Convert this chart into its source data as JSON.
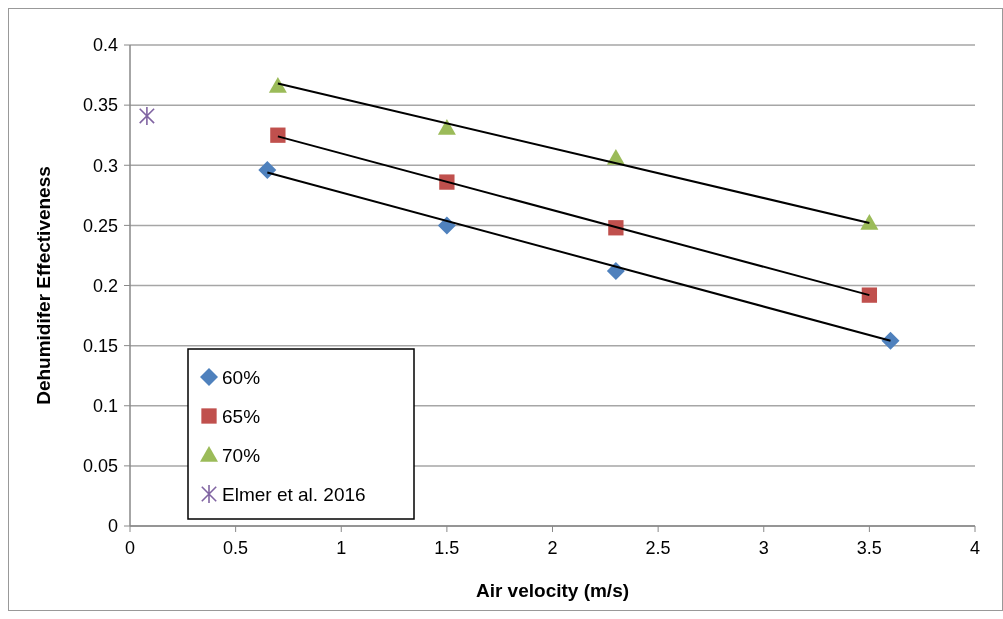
{
  "chart_data": {
    "type": "scatter",
    "xlabel": "Air velocity (m/s)",
    "ylabel": "Dehumidifer Effectiveness",
    "xlim": [
      0,
      4
    ],
    "xticks": [
      0,
      0.5,
      1,
      1.5,
      2,
      2.5,
      3,
      3.5,
      4
    ],
    "ylim": [
      0,
      0.4
    ],
    "yticks": [
      0,
      0.05,
      0.1,
      0.15,
      0.2,
      0.25,
      0.3,
      0.35,
      0.4
    ],
    "grid": "y",
    "legend": "bottom left",
    "series": [
      {
        "name": "60%",
        "color": "#4f81bd",
        "marker": "diamond",
        "x": [
          0.65,
          1.5,
          2.3,
          3.6
        ],
        "values": [
          0.296,
          0.25,
          0.212,
          0.154
        ]
      },
      {
        "name": "65%",
        "color": "#c0504d",
        "marker": "square",
        "x": [
          0.7,
          1.5,
          2.3,
          3.5
        ],
        "values": [
          0.325,
          0.286,
          0.248,
          0.192
        ]
      },
      {
        "name": "70%",
        "color": "#9bbb59",
        "marker": "triangle",
        "x": [
          0.7,
          1.5,
          2.3,
          3.5
        ],
        "values": [
          0.366,
          0.331,
          0.306,
          0.252
        ]
      },
      {
        "name": "Elmer et al. 2016",
        "color": "#8064a2",
        "marker": "cross",
        "x": [
          0.08
        ],
        "values": [
          0.341
        ]
      },
      {
        "type": "line",
        "color": "#000000",
        "marker": "none",
        "x": [
          0.65,
          3.6
        ],
        "values": [
          0.294,
          0.154
        ]
      },
      {
        "type": "line",
        "color": "#000000",
        "marker": "none",
        "x": [
          0.7,
          3.5
        ],
        "values": [
          0.324,
          0.192
        ]
      },
      {
        "type": "line",
        "color": "#000000",
        "marker": "none",
        "x": [
          0.7,
          3.5
        ],
        "values": [
          0.368,
          0.252
        ]
      }
    ]
  }
}
